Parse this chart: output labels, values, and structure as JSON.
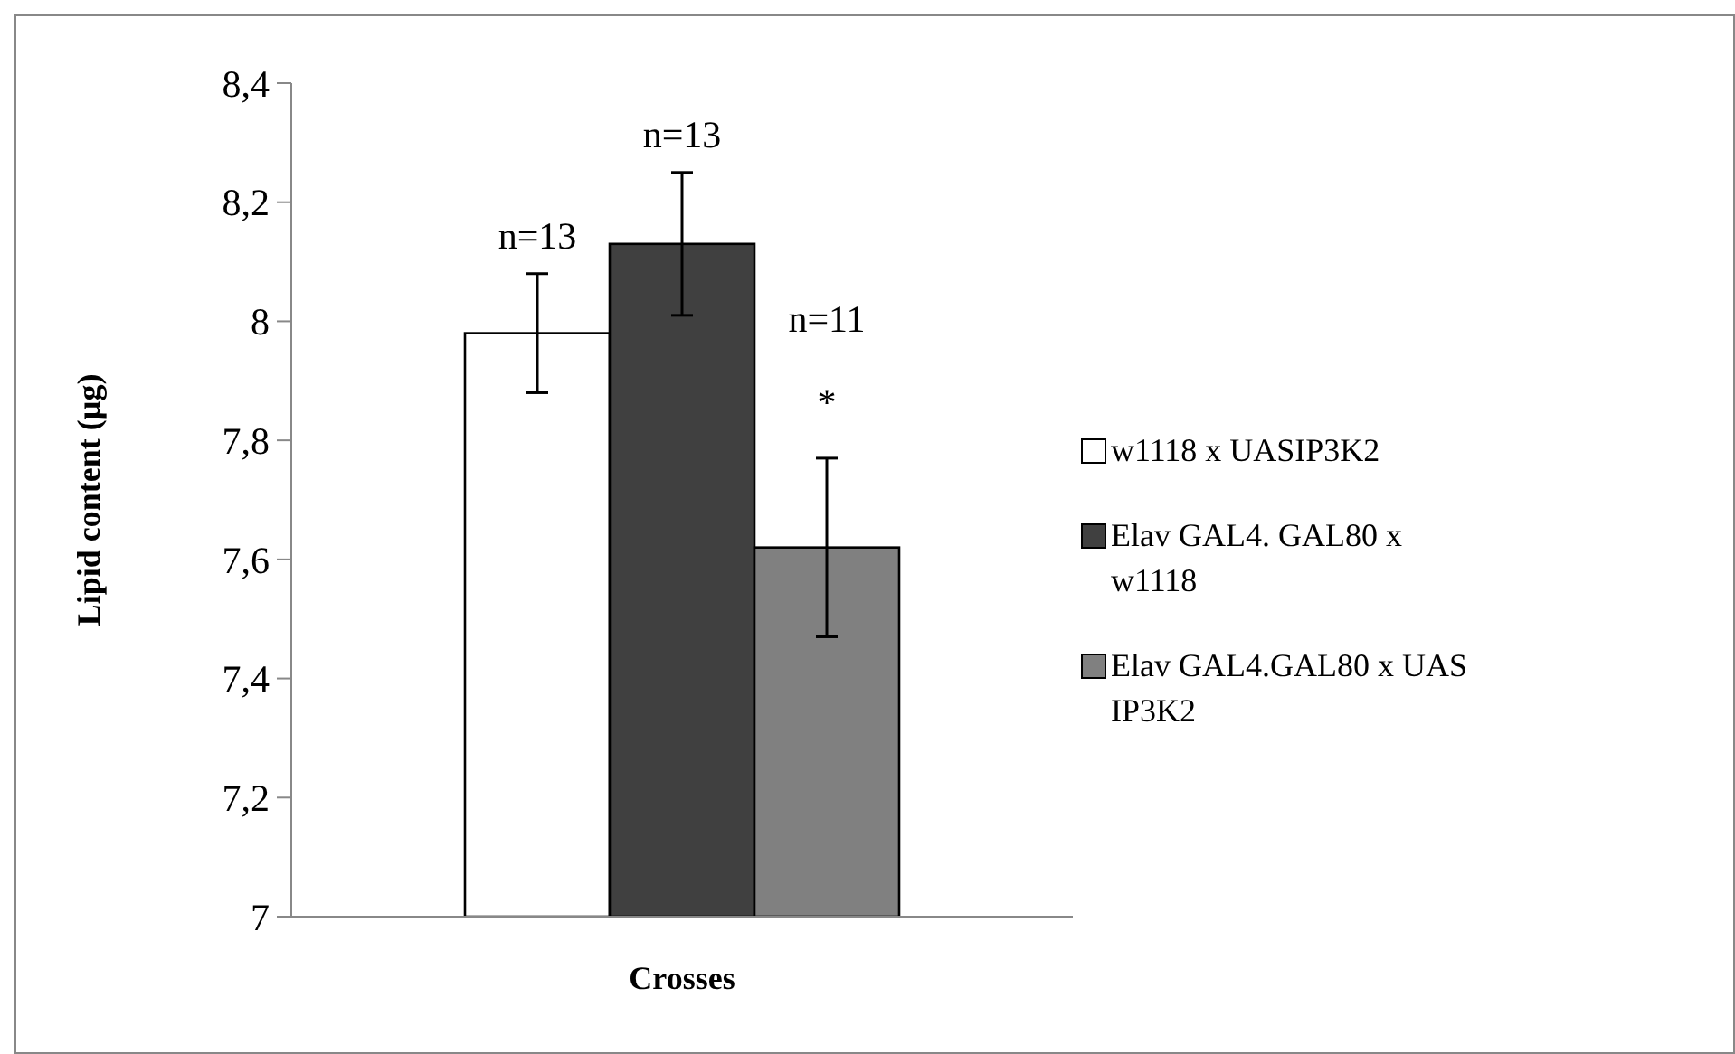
{
  "chart_data": {
    "type": "bar",
    "xlabel": "Crosses",
    "ylabel": "Lipid content (µg)",
    "categories": [
      null
    ],
    "series": [
      {
        "name": "w1118 x UASIP3K2",
        "color": "#ffffff",
        "values": [
          7.98
        ],
        "errors": [
          0.1
        ]
      },
      {
        "name": "Elav GAL4. GAL80 x w1118",
        "color": "#404040",
        "values": [
          8.13
        ],
        "errors": [
          0.12
        ]
      },
      {
        "name": "Elav GAL4.GAL80 x UAS IP3K2",
        "color": "#808080",
        "values": [
          7.62
        ],
        "errors": [
          0.15
        ]
      }
    ],
    "ylim": [
      7,
      8.4
    ],
    "yticks": [
      {
        "value": 7,
        "label": "7"
      },
      {
        "value": 7.2,
        "label": "7,2"
      },
      {
        "value": 7.4,
        "label": "7,4"
      },
      {
        "value": 7.6,
        "label": "7,6"
      },
      {
        "value": 7.8,
        "label": "7,8"
      },
      {
        "value": 8,
        "label": "8"
      },
      {
        "value": 8.2,
        "label": "8,2"
      },
      {
        "value": 8.4,
        "label": "8,4"
      }
    ],
    "grid": false,
    "legend": "right",
    "annotations": [
      "n=13",
      "n=13",
      "n=11",
      "*"
    ]
  }
}
